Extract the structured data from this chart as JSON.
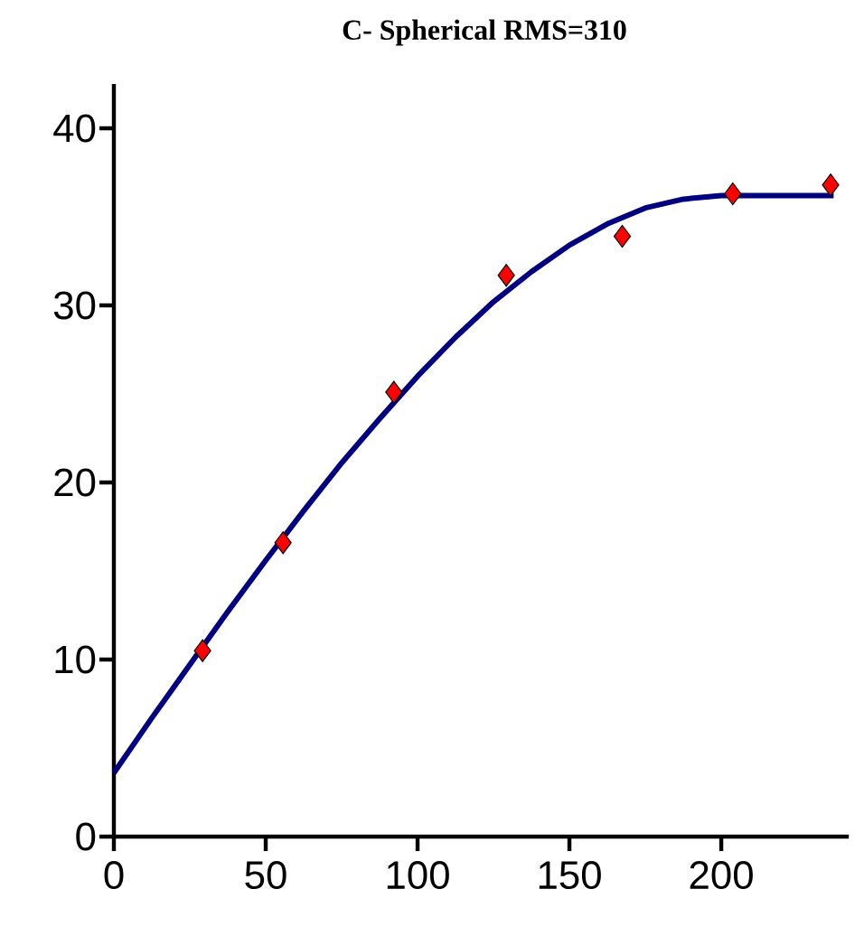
{
  "chart_data": {
    "type": "scatter",
    "title": "C-  Spherical  RMS=310",
    "series": [
      {
        "color": "#ff0000",
        "marker": "diamond",
        "x": [
          29.2,
          55.7,
          92.2,
          129.2,
          167.4,
          203.8,
          236
        ],
        "values": [
          10.5,
          16.6,
          25.1,
          31.7,
          33.9,
          36.3,
          36.8
        ]
      },
      {
        "type": "line",
        "color": "#000080",
        "marker": "none",
        "line_style": "solid",
        "x": [
          0,
          12.5,
          25,
          37.5,
          50,
          62.5,
          75,
          87.5,
          100,
          112.5,
          125,
          137.5,
          150,
          162.5,
          175,
          187.5,
          200,
          237
        ],
        "values": [
          3.6,
          6.7,
          9.7,
          12.7,
          15.6,
          18.4,
          21.1,
          23.6,
          26.0,
          28.2,
          30.2,
          31.9,
          33.4,
          34.6,
          35.5,
          36.0,
          36.2,
          36.2
        ]
      }
    ],
    "xlim": [
      0,
      242
    ],
    "ylim": [
      0,
      42.5
    ],
    "xticks": [
      0,
      50,
      100,
      150,
      200
    ],
    "yticks": [
      0,
      10,
      20,
      30,
      40
    ]
  }
}
